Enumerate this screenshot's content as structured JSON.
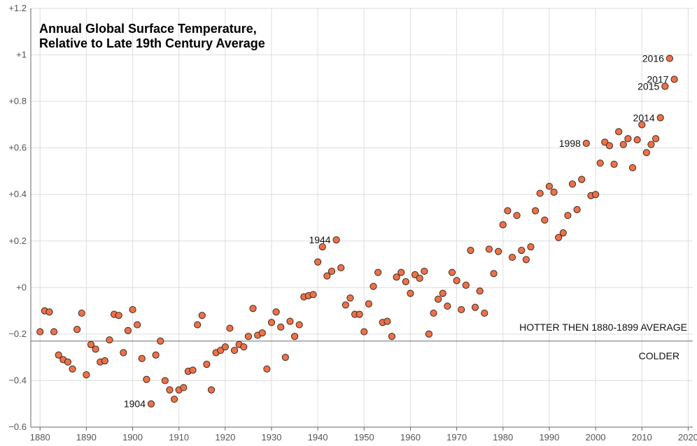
{
  "chart_data": {
    "type": "scatter",
    "title_lines": [
      "Annual Global Surface Temperature,",
      "Relative to Late 19th Century Average"
    ],
    "xlabel": "",
    "ylabel": "",
    "xlim": [
      1878,
      2021
    ],
    "ylim": [
      -0.6,
      1.2
    ],
    "x_ticks": [
      1880,
      1890,
      1900,
      1910,
      1920,
      1930,
      1940,
      1950,
      1960,
      1970,
      1980,
      1990,
      2000,
      2010,
      2020
    ],
    "y_ticks": [
      -0.6,
      -0.4,
      -0.2,
      0,
      0.2,
      0.4,
      0.6,
      0.8,
      1.0,
      1.2
    ],
    "y_tick_labels": [
      "−0.6",
      "−0.4",
      "−0.2",
      "+0",
      "+0.2",
      "+0.4",
      "+0.6",
      "+0.8",
      "+1",
      "+1.2"
    ],
    "grid": true,
    "reference_line": {
      "y": -0.23,
      "label_above": "HOTTER THEN 1880-1899 AVERAGE",
      "label_below": "COLDER"
    },
    "series": [
      {
        "points": [
          [
            1880,
            -0.19
          ],
          [
            1881,
            -0.1
          ],
          [
            1882,
            -0.105
          ],
          [
            1883,
            -0.19
          ],
          [
            1884,
            -0.29
          ],
          [
            1885,
            -0.31
          ],
          [
            1886,
            -0.32
          ],
          [
            1887,
            -0.35
          ],
          [
            1888,
            -0.18
          ],
          [
            1889,
            -0.11
          ],
          [
            1890,
            -0.375
          ],
          [
            1891,
            -0.245
          ],
          [
            1892,
            -0.265
          ],
          [
            1893,
            -0.32
          ],
          [
            1894,
            -0.315
          ],
          [
            1895,
            -0.225
          ],
          [
            1896,
            -0.115
          ],
          [
            1897,
            -0.12
          ],
          [
            1898,
            -0.28
          ],
          [
            1899,
            -0.185
          ],
          [
            1900,
            -0.095
          ],
          [
            1901,
            -0.16
          ],
          [
            1902,
            -0.305
          ],
          [
            1903,
            -0.395
          ],
          [
            1904,
            -0.5
          ],
          [
            1905,
            -0.29
          ],
          [
            1906,
            -0.23
          ],
          [
            1907,
            -0.4
          ],
          [
            1908,
            -0.44
          ],
          [
            1909,
            -0.48
          ],
          [
            1910,
            -0.44
          ],
          [
            1911,
            -0.43
          ],
          [
            1912,
            -0.36
          ],
          [
            1913,
            -0.355
          ],
          [
            1914,
            -0.16
          ],
          [
            1915,
            -0.12
          ],
          [
            1916,
            -0.33
          ],
          [
            1917,
            -0.44
          ],
          [
            1918,
            -0.28
          ],
          [
            1919,
            -0.27
          ],
          [
            1920,
            -0.255
          ],
          [
            1921,
            -0.175
          ],
          [
            1922,
            -0.27
          ],
          [
            1923,
            -0.245
          ],
          [
            1924,
            -0.255
          ],
          [
            1925,
            -0.21
          ],
          [
            1926,
            -0.09
          ],
          [
            1927,
            -0.205
          ],
          [
            1928,
            -0.195
          ],
          [
            1929,
            -0.35
          ],
          [
            1930,
            -0.15
          ],
          [
            1931,
            -0.105
          ],
          [
            1932,
            -0.17
          ],
          [
            1933,
            -0.3
          ],
          [
            1934,
            -0.145
          ],
          [
            1935,
            -0.21
          ],
          [
            1936,
            -0.16
          ],
          [
            1937,
            -0.04
          ],
          [
            1938,
            -0.035
          ],
          [
            1939,
            -0.03
          ],
          [
            1940,
            0.11
          ],
          [
            1941,
            0.175
          ],
          [
            1942,
            0.05
          ],
          [
            1943,
            0.07
          ],
          [
            1944,
            0.205
          ],
          [
            1945,
            0.085
          ],
          [
            1946,
            -0.075
          ],
          [
            1947,
            -0.045
          ],
          [
            1948,
            -0.115
          ],
          [
            1949,
            -0.115
          ],
          [
            1950,
            -0.19
          ],
          [
            1951,
            -0.07
          ],
          [
            1952,
            0.005
          ],
          [
            1953,
            0.065
          ],
          [
            1954,
            -0.15
          ],
          [
            1955,
            -0.145
          ],
          [
            1956,
            -0.21
          ],
          [
            1957,
            0.045
          ],
          [
            1958,
            0.065
          ],
          [
            1959,
            0.025
          ],
          [
            1960,
            -0.025
          ],
          [
            1961,
            0.055
          ],
          [
            1962,
            0.04
          ],
          [
            1963,
            0.07
          ],
          [
            1964,
            -0.2
          ],
          [
            1965,
            -0.11
          ],
          [
            1966,
            -0.05
          ],
          [
            1967,
            -0.025
          ],
          [
            1968,
            -0.08
          ],
          [
            1969,
            0.065
          ],
          [
            1970,
            0.03
          ],
          [
            1971,
            -0.095
          ],
          [
            1972,
            0.01
          ],
          [
            1973,
            0.16
          ],
          [
            1974,
            -0.085
          ],
          [
            1975,
            -0.015
          ],
          [
            1976,
            -0.11
          ],
          [
            1977,
            0.165
          ],
          [
            1978,
            0.06
          ],
          [
            1979,
            0.155
          ],
          [
            1980,
            0.27
          ],
          [
            1981,
            0.33
          ],
          [
            1982,
            0.13
          ],
          [
            1983,
            0.31
          ],
          [
            1984,
            0.16
          ],
          [
            1985,
            0.12
          ],
          [
            1986,
            0.175
          ],
          [
            1987,
            0.33
          ],
          [
            1988,
            0.405
          ],
          [
            1989,
            0.29
          ],
          [
            1990,
            0.435
          ],
          [
            1991,
            0.41
          ],
          [
            1992,
            0.215
          ],
          [
            1993,
            0.235
          ],
          [
            1994,
            0.31
          ],
          [
            1995,
            0.445
          ],
          [
            1996,
            0.335
          ],
          [
            1997,
            0.465
          ],
          [
            1998,
            0.62
          ],
          [
            1999,
            0.395
          ],
          [
            2000,
            0.4
          ],
          [
            2001,
            0.535
          ],
          [
            2002,
            0.625
          ],
          [
            2003,
            0.61
          ],
          [
            2004,
            0.53
          ],
          [
            2005,
            0.67
          ],
          [
            2006,
            0.615
          ],
          [
            2007,
            0.64
          ],
          [
            2008,
            0.515
          ],
          [
            2009,
            0.635
          ],
          [
            2010,
            0.7
          ],
          [
            2011,
            0.58
          ],
          [
            2012,
            0.615
          ],
          [
            2013,
            0.64
          ],
          [
            2014,
            0.73
          ],
          [
            2015,
            0.865
          ],
          [
            2016,
            0.985
          ],
          [
            2017,
            0.895
          ]
        ]
      }
    ],
    "point_labels": [
      {
        "year": 1904,
        "text": "1904"
      },
      {
        "year": 1944,
        "text": "1944"
      },
      {
        "year": 1998,
        "text": "1998"
      },
      {
        "year": 2014,
        "text": "2014"
      },
      {
        "year": 2015,
        "text": "2015"
      },
      {
        "year": 2016,
        "text": "2016"
      },
      {
        "year": 2017,
        "text": "2017"
      }
    ],
    "colors": {
      "point_fill": "#ee7148",
      "point_stroke": "#3a2a22",
      "grid": "#dddddd",
      "reference_line": "#888888"
    }
  }
}
